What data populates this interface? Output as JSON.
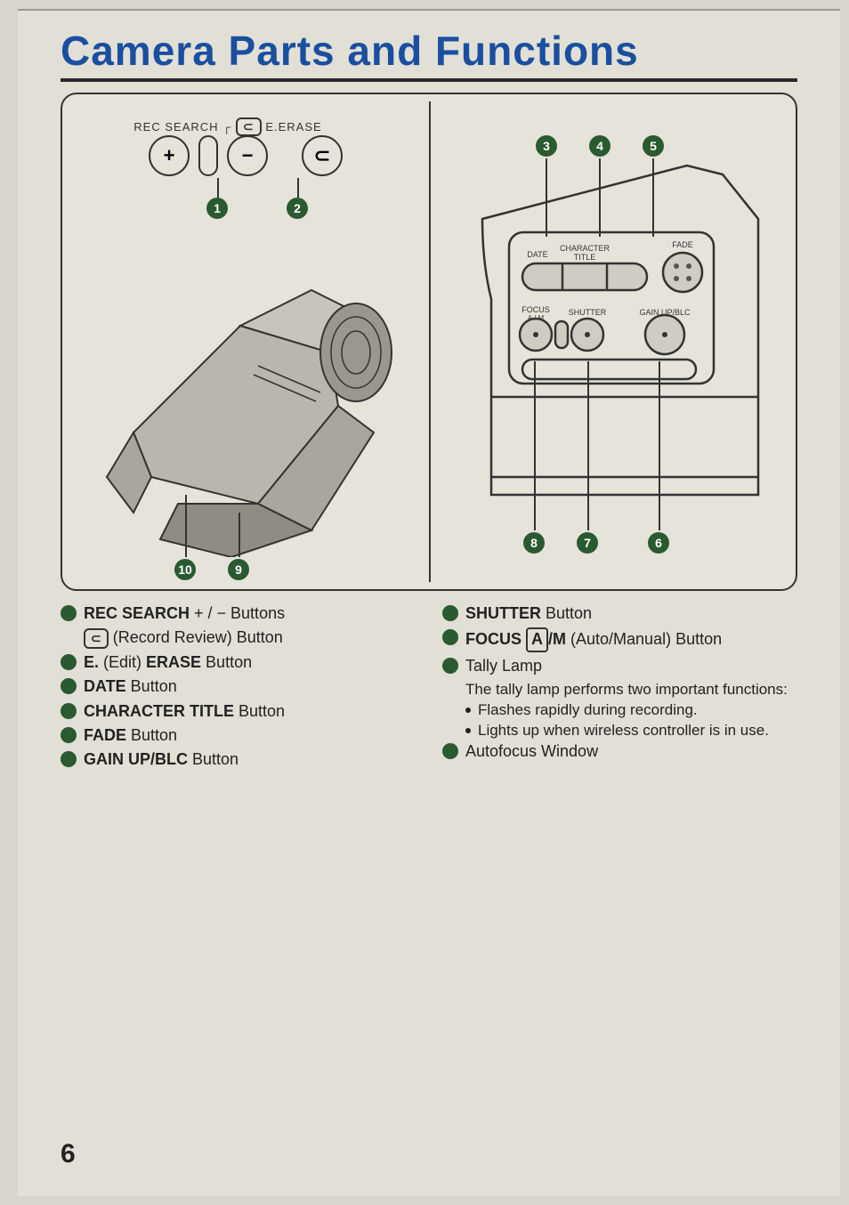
{
  "title": "Camera Parts and Functions",
  "page_number": "6",
  "colors": {
    "title": "#1a4fa0",
    "bullet": "#2a5a2f",
    "badge": "#2a5a2f",
    "line": "#2a2a2a",
    "background": "#e2dfd6"
  },
  "top_labels": {
    "rec_search": "REC SEARCH",
    "e_erase": "E.ERASE",
    "plus": "+",
    "minus": "−"
  },
  "control_panel_labels": {
    "date": "DATE",
    "character": "CHARACTER",
    "title": "TITLE",
    "fade": "FADE",
    "focus": "FOCUS",
    "am": "A / M",
    "shutter": "SHUTTER",
    "gain": "GAIN UP/BLC"
  },
  "callouts": {
    "1": "1",
    "2": "2",
    "3": "3",
    "4": "4",
    "5": "5",
    "6": "6",
    "7": "7",
    "8": "8",
    "9": "9",
    "10": "10"
  },
  "left_list": [
    {
      "html": "<b>REC SEARCH</b> + / − Buttons"
    },
    {
      "html": "<span class='review-icon'>⊂</span> (Record Review) Button",
      "indent": true
    },
    {
      "html": "<b>E.</b> (Edit) <b>ERASE</b> Button"
    },
    {
      "html": "<b>DATE</b> Button"
    },
    {
      "html": "<b>CHARACTER TITLE</b> Button"
    },
    {
      "html": "<b>FADE</b> Button"
    },
    {
      "html": "<b>GAIN UP/BLC</b> Button"
    }
  ],
  "right_list": [
    {
      "html": "<b>SHUTTER</b> Button"
    },
    {
      "html": "<b>FOCUS</b> <span class='boxed'>A</span><b>/M</b> (Auto/Manual) Button"
    },
    {
      "html": "Tally Lamp",
      "sub_intro": "The tally lamp performs two important functions:",
      "sub": [
        "Flashes rapidly during recording.",
        "Lights up when wireless controller is in use."
      ]
    },
    {
      "html": "Autofocus Window"
    }
  ]
}
